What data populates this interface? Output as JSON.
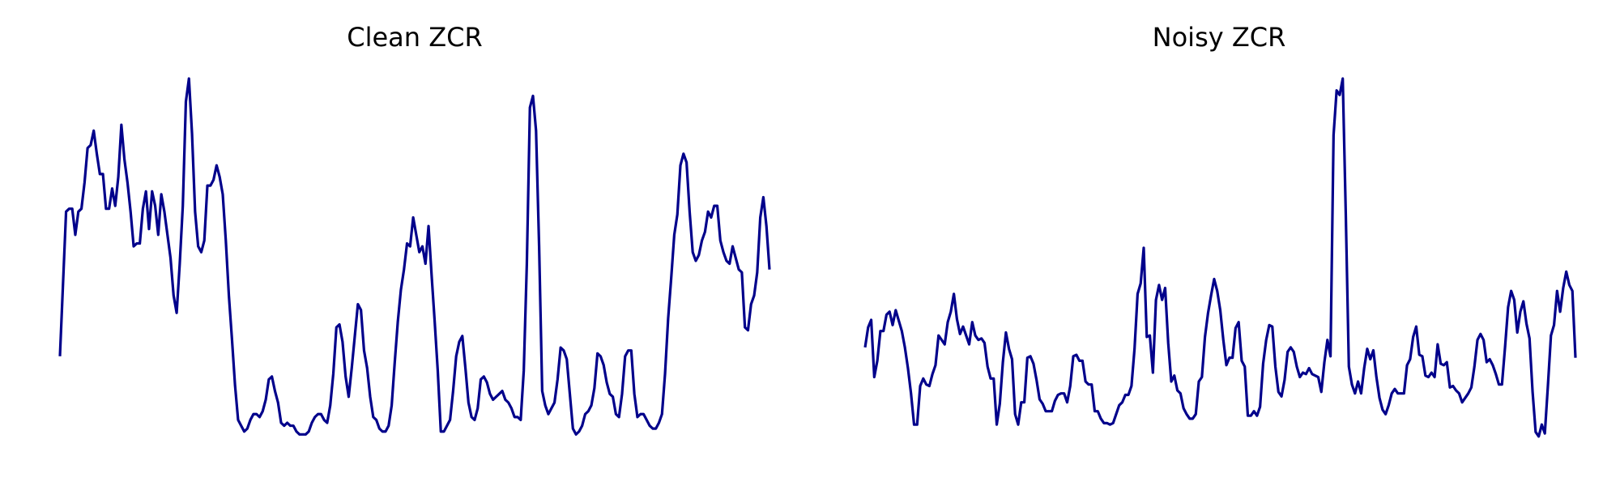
{
  "chart_data": [
    {
      "type": "line",
      "title": "Clean ZCR",
      "xlabel": "",
      "ylabel": "",
      "axes_visible": false,
      "grid": false,
      "x_range": [
        0,
        199
      ],
      "ylim": [
        0,
        1
      ],
      "color": "#00008B",
      "values": [
        0.2381,
        0.4365,
        0.6349,
        0.6429,
        0.6429,
        0.5714,
        0.6349,
        0.6429,
        0.7143,
        0.8095,
        0.8175,
        0.8571,
        0.7937,
        0.7381,
        0.7381,
        0.6429,
        0.6429,
        0.6984,
        0.6508,
        0.7302,
        0.873,
        0.7778,
        0.7143,
        0.6349,
        0.5397,
        0.5476,
        0.5476,
        0.6429,
        0.6905,
        0.5873,
        0.6905,
        0.6508,
        0.5714,
        0.6825,
        0.6349,
        0.5714,
        0.5079,
        0.4048,
        0.3571,
        0.4921,
        0.6508,
        0.9365,
        1.0,
        0.8492,
        0.6349,
        0.5397,
        0.5238,
        0.5556,
        0.7063,
        0.7063,
        0.7222,
        0.7619,
        0.7302,
        0.6825,
        0.5556,
        0.4048,
        0.2857,
        0.1587,
        0.0635,
        0.0476,
        0.0317,
        0.0397,
        0.0635,
        0.0794,
        0.0794,
        0.0714,
        0.0873,
        0.119,
        0.1746,
        0.1825,
        0.1429,
        0.1111,
        0.0556,
        0.0476,
        0.0556,
        0.0476,
        0.0476,
        0.0317,
        0.0238,
        0.0238,
        0.0238,
        0.0317,
        0.0556,
        0.0714,
        0.0794,
        0.0794,
        0.0635,
        0.0556,
        0.1032,
        0.1905,
        0.3175,
        0.3254,
        0.2778,
        0.1825,
        0.127,
        0.2063,
        0.2937,
        0.381,
        0.3651,
        0.254,
        0.2063,
        0.127,
        0.0714,
        0.0635,
        0.0397,
        0.0317,
        0.0317,
        0.0476,
        0.1032,
        0.2222,
        0.3333,
        0.4206,
        0.4762,
        0.5476,
        0.5397,
        0.619,
        0.5714,
        0.5238,
        0.5397,
        0.4921,
        0.5952,
        0.4603,
        0.3333,
        0.1984,
        0.0317,
        0.0317,
        0.0476,
        0.0635,
        0.1429,
        0.2381,
        0.2778,
        0.2937,
        0.2063,
        0.1111,
        0.0714,
        0.0635,
        0.0952,
        0.1746,
        0.1825,
        0.1667,
        0.1349,
        0.119,
        0.127,
        0.1349,
        0.1429,
        0.119,
        0.1111,
        0.0952,
        0.0714,
        0.0714,
        0.0635,
        0.1984,
        0.4921,
        0.9206,
        0.9524,
        0.8571,
        0.5397,
        0.1429,
        0.1032,
        0.0794,
        0.0952,
        0.1111,
        0.1746,
        0.2619,
        0.254,
        0.2302,
        0.1349,
        0.0397,
        0.0238,
        0.0317,
        0.0476,
        0.0794,
        0.0873,
        0.1032,
        0.1508,
        0.246,
        0.2381,
        0.2143,
        0.1667,
        0.1349,
        0.127,
        0.0794,
        0.0714,
        0.1349,
        0.2381,
        0.254,
        0.254,
        0.1349,
        0.0714,
        0.0794,
        0.0794,
        0.0635,
        0.0476,
        0.0397,
        0.0397,
        0.0556,
        0.0794,
        0.1905,
        0.3413,
        0.4524,
        0.5714,
        0.627,
        0.7619,
        0.7937,
        0.7698,
        0.6349,
        0.5238,
        0.5,
        0.5159,
        0.5556,
        0.5794,
        0.6349,
        0.619,
        0.6508,
        0.6508,
        0.5556,
        0.5238,
        0.5,
        0.4921,
        0.5397,
        0.5079,
        0.4762,
        0.4683,
        0.3175,
        0.3095,
        0.381,
        0.4048,
        0.4683,
        0.619,
        0.6746,
        0.5952,
        0.4762
      ]
    },
    {
      "type": "line",
      "title": "Noisy ZCR",
      "xlabel": "",
      "ylabel": "",
      "axes_visible": false,
      "grid": false,
      "x_range": [
        0,
        199
      ],
      "ylim": [
        0,
        1
      ],
      "color": "#00008B",
      "values": [
        0.2642,
        0.3191,
        0.3394,
        0.1829,
        0.2276,
        0.3089,
        0.3089,
        0.3537,
        0.3618,
        0.3252,
        0.3659,
        0.3374,
        0.3089,
        0.2642,
        0.2073,
        0.1382,
        0.0528,
        0.0528,
        0.1585,
        0.1789,
        0.1626,
        0.1585,
        0.1911,
        0.2154,
        0.2967,
        0.2846,
        0.2724,
        0.3333,
        0.3618,
        0.4106,
        0.3415,
        0.3008,
        0.3211,
        0.2967,
        0.2724,
        0.3333,
        0.2967,
        0.2846,
        0.2886,
        0.2764,
        0.2114,
        0.1789,
        0.1789,
        0.0528,
        0.1097,
        0.2236,
        0.3049,
        0.2602,
        0.2317,
        0.0813,
        0.0528,
        0.1138,
        0.1138,
        0.2358,
        0.2398,
        0.2195,
        0.1748,
        0.1219,
        0.1097,
        0.0894,
        0.0894,
        0.0894,
        0.1178,
        0.1341,
        0.1382,
        0.1382,
        0.1138,
        0.1585,
        0.2398,
        0.2439,
        0.2276,
        0.2276,
        0.1707,
        0.1626,
        0.1626,
        0.0894,
        0.0894,
        0.0691,
        0.0569,
        0.0569,
        0.0528,
        0.0569,
        0.0813,
        0.1057,
        0.1138,
        0.1341,
        0.1341,
        0.1585,
        0.2601,
        0.4106,
        0.439,
        0.5366,
        0.2927,
        0.2967,
        0.1951,
        0.3943,
        0.4349,
        0.3943,
        0.4268,
        0.2764,
        0.1707,
        0.187,
        0.1463,
        0.1382,
        0.0976,
        0.0813,
        0.0691,
        0.0691,
        0.0813,
        0.1707,
        0.1829,
        0.2927,
        0.3577,
        0.4065,
        0.4512,
        0.4187,
        0.3659,
        0.2846,
        0.2155,
        0.2358,
        0.2358,
        0.3171,
        0.3333,
        0.2276,
        0.2114,
        0.0772,
        0.0772,
        0.0894,
        0.0772,
        0.1016,
        0.2195,
        0.2846,
        0.3252,
        0.3211,
        0.2114,
        0.1423,
        0.13,
        0.1748,
        0.252,
        0.2642,
        0.252,
        0.2114,
        0.1829,
        0.1951,
        0.1911,
        0.2073,
        0.1911,
        0.187,
        0.1829,
        0.1423,
        0.2236,
        0.2846,
        0.2398,
        0.8455,
        0.9675,
        0.9553,
        1.0,
        0.626,
        0.2114,
        0.1626,
        0.1382,
        0.1707,
        0.1382,
        0.2073,
        0.2602,
        0.2317,
        0.2561,
        0.1829,
        0.126,
        0.0935,
        0.0813,
        0.1057,
        0.1382,
        0.1504,
        0.1382,
        0.1382,
        0.1382,
        0.2154,
        0.2317,
        0.2927,
        0.3211,
        0.2439,
        0.2398,
        0.187,
        0.1829,
        0.1951,
        0.1829,
        0.2724,
        0.2195,
        0.2154,
        0.2236,
        0.1545,
        0.1585,
        0.1463,
        0.1382,
        0.1138,
        0.126,
        0.1382,
        0.1545,
        0.2114,
        0.2846,
        0.3008,
        0.2845,
        0.2236,
        0.2317,
        0.2154,
        0.1911,
        0.1626,
        0.1626,
        0.2642,
        0.374,
        0.4187,
        0.3943,
        0.3049,
        0.3618,
        0.3902,
        0.3293,
        0.2886,
        0.1423,
        0.0325,
        0.0203,
        0.0528,
        0.0285,
        0.1585,
        0.2967,
        0.3252,
        0.4187,
        0.3618,
        0.4268,
        0.4715,
        0.435,
        0.4187,
        0.2358
      ]
    }
  ]
}
